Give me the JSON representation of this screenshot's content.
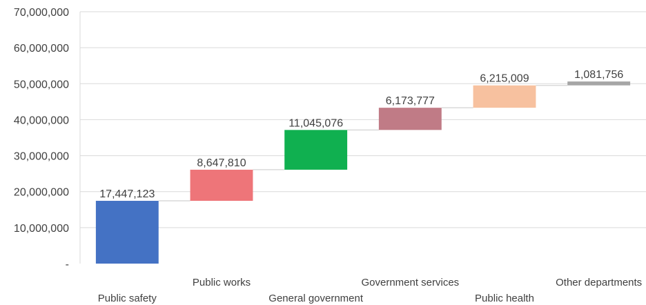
{
  "chart_data": {
    "type": "bar",
    "subtype": "waterfall",
    "categories": [
      "Public safety",
      "Public works",
      "General government",
      "Government services",
      "Public health",
      "Other departments"
    ],
    "values": [
      17447123,
      8647810,
      11045076,
      6173777,
      6215009,
      1081756
    ],
    "value_labels": [
      "17,447,123",
      "8,647,810",
      "11,045,076",
      "6,173,777",
      "6,215,009",
      "1,081,756"
    ],
    "colors": [
      "#4472c4",
      "#ee7579",
      "#10b050",
      "#c07b86",
      "#f7c19f",
      "#a6a6a6"
    ],
    "ylim": [
      0,
      70000000
    ],
    "yticks": [
      0,
      10000000,
      20000000,
      30000000,
      40000000,
      50000000,
      60000000,
      70000000
    ],
    "ytick_labels": [
      "-",
      "10,000,000",
      "20,000,000",
      "30,000,000",
      "40,000,000",
      "50,000,000",
      "60,000,000",
      "70,000,000"
    ],
    "grid": true,
    "legend": "none",
    "title": "",
    "xlabel": "",
    "ylabel": ""
  }
}
